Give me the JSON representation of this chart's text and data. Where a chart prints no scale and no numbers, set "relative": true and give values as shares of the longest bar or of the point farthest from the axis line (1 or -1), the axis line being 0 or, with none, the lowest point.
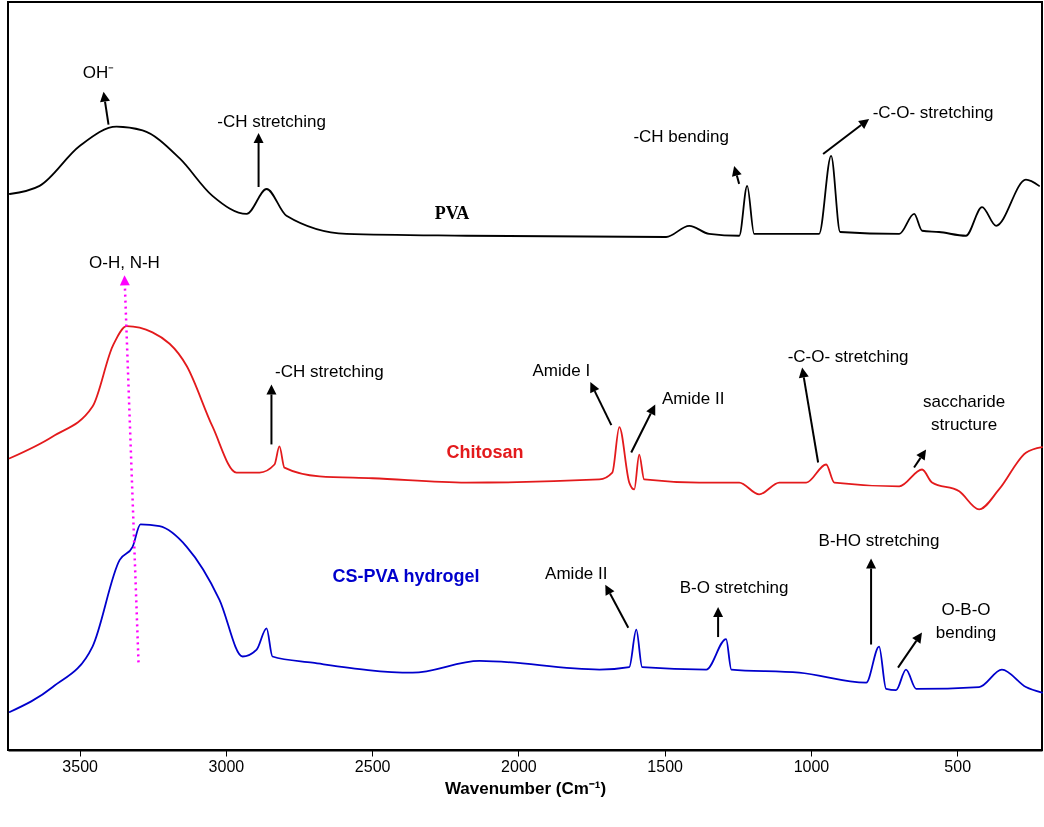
{
  "chart_data": {
    "type": "line",
    "relative": true,
    "xlabel": "Wavenumber (Cm⁻¹)",
    "xlim": [
      3745,
      210
    ],
    "xticks": [
      3500,
      3000,
      2500,
      2000,
      1500,
      1000,
      500
    ],
    "legend": false,
    "series": [
      {
        "name": "PVA",
        "color": "#000000",
        "x": [
          3739,
          3637,
          3500,
          3374,
          3285,
          3158,
          3046,
          2929,
          2861,
          2793,
          2588,
          2178,
          1495,
          1416,
          1348,
          1245,
          1218,
          1194,
          1016,
          972,
          931,
          900,
          698,
          647,
          620,
          562,
          470,
          415,
          367,
          265,
          220
        ],
        "values": [
          0.892,
          0.905,
          0.969,
          1,
          0.994,
          0.949,
          0.889,
          0.86,
          0.9,
          0.857,
          0.828,
          0.825,
          0.823,
          0.841,
          0.828,
          0.825,
          0.905,
          0.828,
          0.828,
          0.828,
          0.953,
          0.831,
          0.828,
          0.86,
          0.833,
          0.831,
          0.825,
          0.871,
          0.841,
          0.915,
          0.905
        ]
      },
      {
        "name": "Chitosan",
        "color": "#e31a1c",
        "x": [
          3739,
          3592,
          3456,
          3387,
          3339,
          3251,
          3134,
          3046,
          2964,
          2885,
          2834,
          2817,
          2800,
          2680,
          2499,
          2178,
          1723,
          1679,
          1655,
          1621,
          1604,
          1587,
          1570,
          1382,
          1245,
          1177,
          1108,
          1016,
          948,
          920,
          698,
          620,
          586,
          493,
          425,
          357,
          265,
          210
        ],
        "values": [
          0.468,
          0.503,
          0.551,
          0.648,
          0.68,
          0.67,
          0.616,
          0.519,
          0.445,
          0.445,
          0.458,
          0.487,
          0.453,
          0.439,
          0.436,
          0.429,
          0.434,
          0.445,
          0.518,
          0.429,
          0.418,
          0.474,
          0.434,
          0.429,
          0.429,
          0.41,
          0.429,
          0.429,
          0.458,
          0.429,
          0.423,
          0.45,
          0.429,
          0.415,
          0.386,
          0.418,
          0.477,
          0.486
        ]
      },
      {
        "name": "CS-PVA hydrogel",
        "color": "#0000cc",
        "x": [
          3739,
          3592,
          3456,
          3363,
          3319,
          3292,
          3227,
          3134,
          3022,
          2943,
          2895,
          2861,
          2841,
          2704,
          2362,
          2133,
          1723,
          1621,
          1597,
          1577,
          1358,
          1290,
          1272,
          1040,
          811,
          767,
          743,
          709,
          675,
          640,
          425,
          347,
          265,
          210
        ],
        "values": [
          0.061,
          0.101,
          0.166,
          0.305,
          0.326,
          0.362,
          0.359,
          0.326,
          0.241,
          0.15,
          0.161,
          0.195,
          0.15,
          0.14,
          0.124,
          0.143,
          0.129,
          0.133,
          0.193,
          0.133,
          0.129,
          0.178,
          0.129,
          0.124,
          0.108,
          0.166,
          0.098,
          0.096,
          0.129,
          0.098,
          0.101,
          0.129,
          0.101,
          0.092
        ]
      }
    ],
    "annotations": [
      {
        "text": "OH⁻",
        "x": 3374,
        "y": 1
      },
      {
        "text": "-CH stretching",
        "x": 2861,
        "y": 0.9
      },
      {
        "text": "-CH bending",
        "x": 1218,
        "y": 0.905
      },
      {
        "text": "-C-O- stretching",
        "x": 931,
        "y": 0.953
      },
      "O-H, N-H",
      {
        "text": "-CH stretching",
        "x": 2817,
        "y": 0.487
      },
      {
        "text": "Amide I",
        "x": 1655,
        "y": 0.518
      },
      {
        "text": "Amide II",
        "x": 1587,
        "y": 0.474
      },
      {
        "text": "-C-O- stretching",
        "x": 948,
        "y": 0.458
      },
      {
        "text": "saccharide structure",
        "x": 620,
        "y": 0.45
      },
      {
        "text": "Amide II",
        "x": 1597,
        "y": 0.193
      },
      {
        "text": "B-O stretching",
        "x": 1290,
        "y": 0.178
      },
      {
        "text": "B-HO stretching",
        "x": 767,
        "y": 0.166
      },
      {
        "text": "O-B-O bending",
        "x": 675,
        "y": 0.129
      }
    ]
  }
}
